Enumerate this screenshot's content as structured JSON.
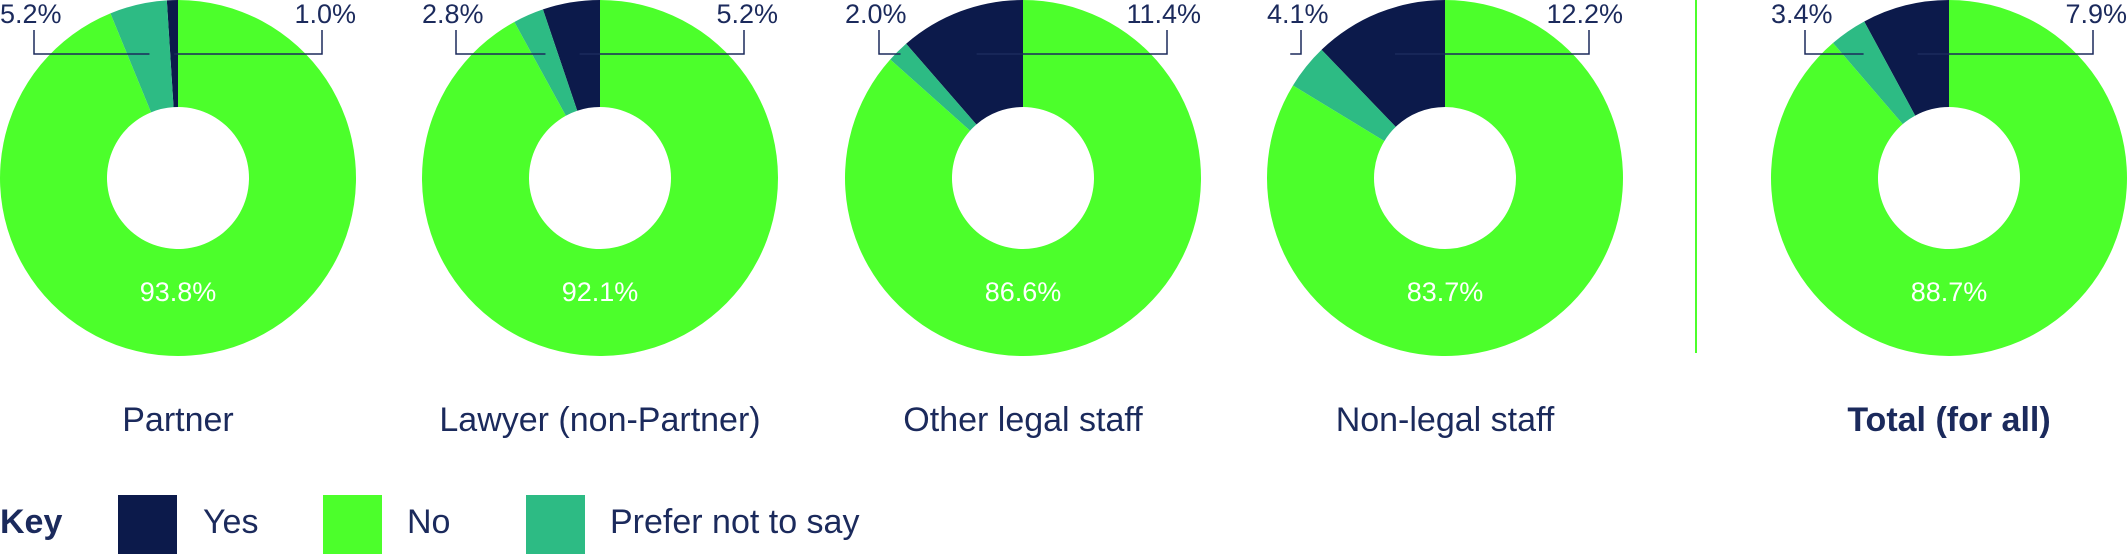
{
  "chart_data": [
    {
      "type": "pie",
      "title": "Partner",
      "categories": [
        "Yes",
        "No",
        "Prefer not to say"
      ],
      "values": [
        1.0,
        93.8,
        5.2
      ],
      "value_labels": [
        "1.0%",
        "93.8%",
        "5.2%"
      ],
      "colors": [
        "#0c1a4b",
        "#4cff2b",
        "#2dbb84"
      ]
    },
    {
      "type": "pie",
      "title": "Lawyer (non-Partner)",
      "categories": [
        "Yes",
        "No",
        "Prefer not to say"
      ],
      "values": [
        5.2,
        92.1,
        2.8
      ],
      "value_labels": [
        "5.2%",
        "92.1%",
        "2.8%"
      ],
      "colors": [
        "#0c1a4b",
        "#4cff2b",
        "#2dbb84"
      ]
    },
    {
      "type": "pie",
      "title": "Other legal staff",
      "categories": [
        "Yes",
        "No",
        "Prefer not to say"
      ],
      "values": [
        11.4,
        86.6,
        2.0
      ],
      "value_labels": [
        "11.4%",
        "86.6%",
        "2.0%"
      ],
      "colors": [
        "#0c1a4b",
        "#4cff2b",
        "#2dbb84"
      ]
    },
    {
      "type": "pie",
      "title": "Non-legal staff",
      "categories": [
        "Yes",
        "No",
        "Prefer not to say"
      ],
      "values": [
        12.2,
        83.7,
        4.1
      ],
      "value_labels": [
        "12.2%",
        "83.7%",
        "4.1%"
      ],
      "colors": [
        "#0c1a4b",
        "#4cff2b",
        "#2dbb84"
      ]
    },
    {
      "type": "pie",
      "title": "Total (for all)",
      "categories": [
        "Yes",
        "No",
        "Prefer not to say"
      ],
      "values": [
        7.9,
        88.7,
        3.4
      ],
      "value_labels": [
        "7.9%",
        "88.7%",
        "3.4%"
      ],
      "colors": [
        "#0c1a4b",
        "#4cff2b",
        "#2dbb84"
      ]
    }
  ],
  "legend_title": "Key"
}
